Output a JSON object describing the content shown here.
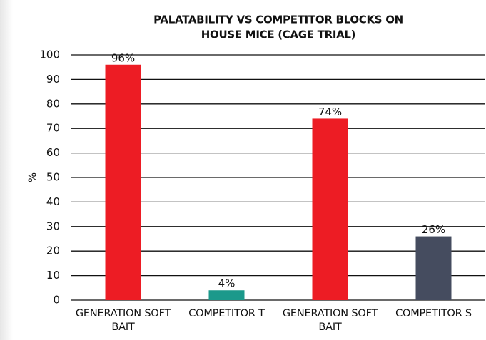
{
  "chart_data": {
    "type": "bar",
    "title": [
      "PALATABILITY VS COMPETITOR BLOCKS ON",
      "HOUSE MICE (CAGE TRIAL)"
    ],
    "ylabel": "%",
    "categories": [
      "GENERATION SOFT BAIT",
      "COMPETITOR T",
      "GENERATION SOFT BAIT",
      "COMPETITOR S"
    ],
    "values": [
      96,
      4,
      74,
      26
    ],
    "value_labels": [
      "96%",
      "4%",
      "74%",
      "26%"
    ],
    "colors": [
      "#ed1c24",
      "#1b998b",
      "#ed1c24",
      "#454c5f"
    ],
    "ylim": [
      0,
      100
    ],
    "yticks": [
      0,
      10,
      20,
      30,
      40,
      50,
      60,
      70,
      80,
      90,
      100
    ],
    "grid": true
  }
}
